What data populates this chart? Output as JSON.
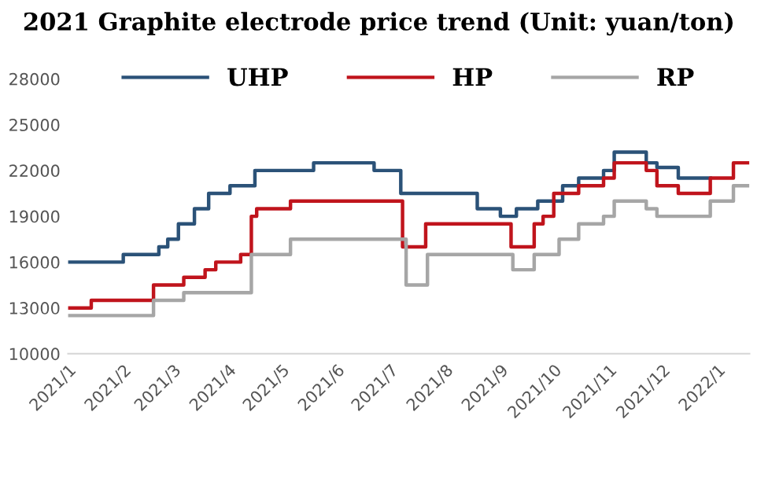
{
  "chart_data": {
    "type": "step",
    "title": "2021 Graphite electrode price trend (Unit: yuan/ton)",
    "series": [
      {
        "name": "UHP",
        "color": "#2b5278",
        "x": [
          "2021-01-01",
          "2021-02-01",
          "2021-02-21",
          "2021-02-26",
          "2021-03-04",
          "2021-03-13",
          "2021-03-21",
          "2021-04-02",
          "2021-04-16",
          "2021-05-19",
          "2021-06-22",
          "2021-07-07",
          "2021-08-19",
          "2021-09-01",
          "2021-09-10",
          "2021-09-22",
          "2021-10-06",
          "2021-10-15",
          "2021-10-29",
          "2021-11-04",
          "2021-11-22",
          "2021-11-28",
          "2021-12-10",
          "2021-12-28"
        ],
        "values": [
          16000,
          16500,
          17000,
          17500,
          18500,
          19500,
          20500,
          21000,
          22000,
          22500,
          22000,
          20500,
          19500,
          19000,
          19500,
          20000,
          21000,
          21500,
          22000,
          23200,
          22500,
          22200,
          21500,
          21500
        ]
      },
      {
        "name": "HP",
        "color": "#c0141c",
        "x": [
          "2021-01-01",
          "2021-01-14",
          "2021-02-18",
          "2021-03-07",
          "2021-03-19",
          "2021-03-25",
          "2021-04-08",
          "2021-04-14",
          "2021-04-17",
          "2021-05-06",
          "2021-07-08",
          "2021-07-21",
          "2021-09-07",
          "2021-09-20",
          "2021-09-25",
          "2021-10-01",
          "2021-10-15",
          "2021-10-29",
          "2021-11-04",
          "2021-11-22",
          "2021-11-28",
          "2021-12-10",
          "2021-12-28",
          "2022-01-10",
          "2022-01-18"
        ],
        "values": [
          13000,
          13500,
          14500,
          15000,
          15500,
          16000,
          16500,
          19000,
          19500,
          20000,
          17000,
          18500,
          17000,
          18500,
          19000,
          20500,
          21000,
          21500,
          22500,
          22000,
          21000,
          20500,
          21500,
          22500,
          22500
        ]
      },
      {
        "name": "RP",
        "color": "#a6a6a6",
        "x": [
          "2021-01-01",
          "2021-02-18",
          "2021-03-07",
          "2021-04-14",
          "2021-05-06",
          "2021-07-10",
          "2021-07-22",
          "2021-09-08",
          "2021-09-20",
          "2021-10-04",
          "2021-10-15",
          "2021-10-29",
          "2021-11-04",
          "2021-11-22",
          "2021-11-28",
          "2021-12-28",
          "2022-01-10",
          "2022-01-18"
        ],
        "values": [
          12500,
          13500,
          14000,
          16500,
          17500,
          14500,
          16500,
          15500,
          16500,
          17500,
          18500,
          19000,
          20000,
          19500,
          19000,
          20000,
          21000,
          21000
        ]
      }
    ],
    "xlim": [
      "2021-01-01",
      "2022-01-19"
    ],
    "xticks": [
      {
        "value": "2021-01-01",
        "label": "2021/1"
      },
      {
        "value": "2021-02-01",
        "label": "2021/2"
      },
      {
        "value": "2021-03-01",
        "label": "2021/3"
      },
      {
        "value": "2021-04-01",
        "label": "2021/4"
      },
      {
        "value": "2021-05-01",
        "label": "2021/5"
      },
      {
        "value": "2021-06-01",
        "label": "2021/6"
      },
      {
        "value": "2021-07-01",
        "label": "2021/7"
      },
      {
        "value": "2021-08-01",
        "label": "2021/8"
      },
      {
        "value": "2021-09-01",
        "label": "2021/9"
      },
      {
        "value": "2021-10-01",
        "label": "2021/10"
      },
      {
        "value": "2021-11-01",
        "label": "2021/11"
      },
      {
        "value": "2021-12-01",
        "label": "2021/12"
      },
      {
        "value": "2022-01-01",
        "label": "2022/1"
      }
    ],
    "ylim": [
      10000,
      28000
    ],
    "yticks": [
      10000,
      13000,
      16000,
      19000,
      22000,
      25000,
      28000
    ],
    "legend": "top",
    "grid": false,
    "marker": "none",
    "line_style": "solid"
  }
}
